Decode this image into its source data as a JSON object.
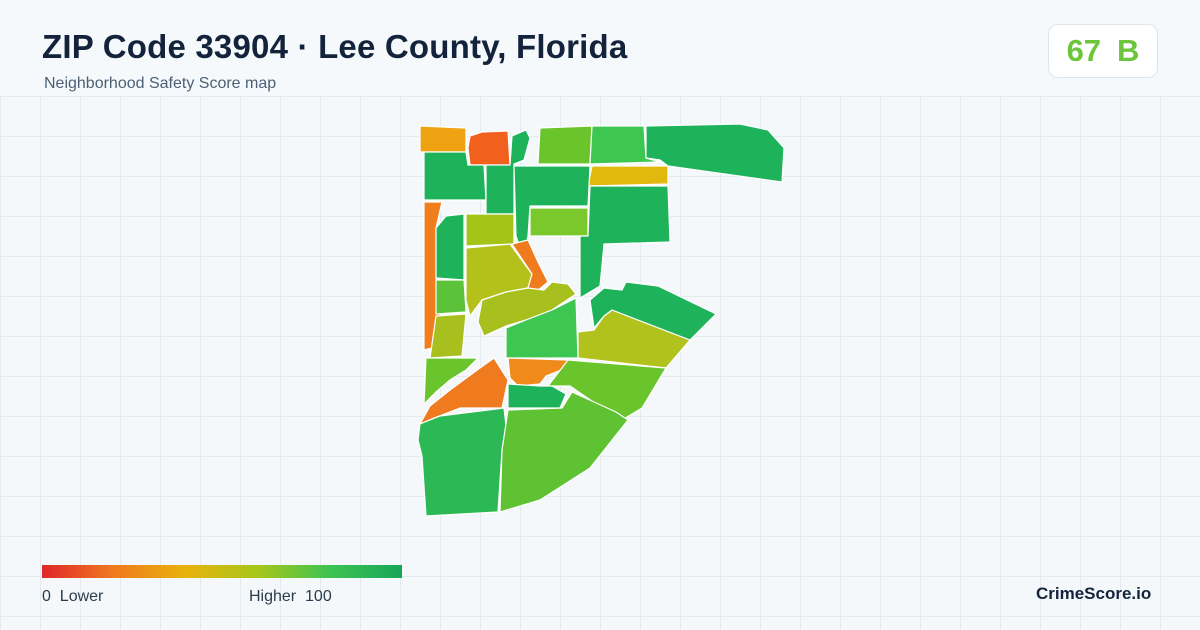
{
  "header": {
    "title": "ZIP Code 33904 · Lee County, Florida",
    "subtitle": "Neighborhood Safety Score map"
  },
  "score": {
    "value": "67",
    "grade": "B",
    "color": "#6cc53a"
  },
  "legend": {
    "low_value": "0",
    "low_label": "Lower",
    "high_label": "Higher",
    "high_value": "100",
    "gradient": [
      "#e0262a",
      "#f07a1e",
      "#e7b30c",
      "#a6c61a",
      "#3ec352",
      "#17a659"
    ]
  },
  "brand": "CrimeScore.io",
  "map_regions": [
    {
      "name": "nw-corner",
      "color": "#f0a312",
      "score": 35
    },
    {
      "name": "north-red",
      "color": "#f2601e",
      "score": 18
    },
    {
      "name": "west-green",
      "color": "#1eb35a",
      "score": 90
    },
    {
      "name": "west-orange-strip",
      "color": "#f07e1c",
      "score": 28
    },
    {
      "name": "north-mid-green",
      "color": "#1eb35a",
      "score": 90
    },
    {
      "name": "north-lime",
      "color": "#6ac42c",
      "score": 68
    },
    {
      "name": "north-light-green",
      "color": "#3ec653",
      "score": 80
    },
    {
      "name": "yellow-strip",
      "color": "#e0b80e",
      "score": 45
    },
    {
      "name": "ne-large",
      "color": "#1eb35a",
      "score": 92
    },
    {
      "name": "center-lime",
      "color": "#7ac82c",
      "score": 66
    },
    {
      "name": "center-green",
      "color": "#1eb35a",
      "score": 88
    },
    {
      "name": "west-inner-green",
      "color": "#1eb35a",
      "score": 88
    },
    {
      "name": "west-lime-block",
      "color": "#a4c418",
      "score": 56
    },
    {
      "name": "center-yellowgreen",
      "color": "#b4c11a",
      "score": 52
    },
    {
      "name": "diagonal-orange",
      "color": "#f07a1e",
      "score": 27
    },
    {
      "name": "diagonal-band",
      "color": "#a8c01e",
      "score": 54
    },
    {
      "name": "west-small-green",
      "color": "#5cc23a",
      "score": 72
    },
    {
      "name": "west-olive",
      "color": "#a8c01e",
      "score": 54
    },
    {
      "name": "center-light-green",
      "color": "#3ec653",
      "score": 80
    },
    {
      "name": "east-olive",
      "color": "#b2c21c",
      "score": 52
    },
    {
      "name": "east-green-mid",
      "color": "#1eb35a",
      "score": 90
    },
    {
      "name": "east-lower-green",
      "color": "#1eb35a",
      "score": 90
    },
    {
      "name": "south-center-orange",
      "color": "#f08a1a",
      "score": 30
    },
    {
      "name": "south-east-lime",
      "color": "#6ac42c",
      "score": 68
    },
    {
      "name": "sw-lime",
      "color": "#6ac42c",
      "score": 68
    },
    {
      "name": "sw-orange",
      "color": "#f07a1e",
      "score": 26
    },
    {
      "name": "south-mid-green",
      "color": "#1eb35a",
      "score": 90
    },
    {
      "name": "south-west-large",
      "color": "#2db856",
      "score": 84
    },
    {
      "name": "south-large-lime",
      "color": "#5ec233",
      "score": 70
    },
    {
      "name": "se-light-green",
      "color": "#4cc243",
      "score": 76
    }
  ]
}
